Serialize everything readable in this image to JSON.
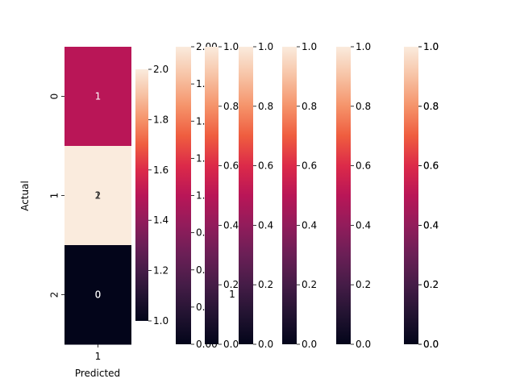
{
  "chart_data": {
    "type": "heatmap",
    "xlabel": "Predicted",
    "ylabel": "Actual",
    "x_tick_labels": [
      "1"
    ],
    "y_tick_labels": [
      "0",
      "1",
      "2"
    ],
    "cells": [
      {
        "row": 0,
        "col": 0,
        "value": 1
      },
      {
        "row": 1,
        "col": 0,
        "value": 2
      },
      {
        "row": 2,
        "col": 0,
        "value": 0
      }
    ],
    "overlapping_annotations": [
      {
        "row": 0,
        "text": "1"
      },
      {
        "row": 1,
        "text": "1"
      },
      {
        "row": 1,
        "text": "2"
      },
      {
        "row": 2,
        "text": "0"
      },
      {
        "row": 2,
        "text": "0"
      }
    ],
    "stray_annotation": "1",
    "colormap": "rocket",
    "colorbars": [
      {
        "vmin": 1.0,
        "vmax": 2.0,
        "ticks": [
          "1.0",
          "1.2",
          "1.4",
          "1.6",
          "1.8",
          "2.0"
        ]
      },
      {
        "vmin": 0.0,
        "vmax": 2.0,
        "ticks": [
          "0.00",
          "0.25",
          "0.50",
          "0.75",
          "1.00",
          "1.25",
          "1.50",
          "1.75",
          "2.00"
        ]
      },
      {
        "vmin": 0.0,
        "vmax": 1.0,
        "ticks": [
          "0.0",
          "0.2",
          "0.4",
          "0.6",
          "0.8",
          "1.0"
        ]
      },
      {
        "vmin": 0.0,
        "vmax": 1.0,
        "ticks": [
          "0.0",
          "0.2",
          "0.4",
          "0.6",
          "0.8",
          "1.0"
        ]
      },
      {
        "vmin": 0.0,
        "vmax": 1.0,
        "ticks": [
          "0.0",
          "0.2",
          "0.4",
          "0.6",
          "0.8",
          "1.0"
        ]
      },
      {
        "vmin": 0.0,
        "vmax": 1.0,
        "ticks": [
          "0.0",
          "0.2",
          "0.4",
          "0.6",
          "0.8",
          "1.0"
        ]
      },
      {
        "vmin": 0.0,
        "vmax": 1.0,
        "ticks": [
          "0.0",
          "0.2",
          "0.4",
          "0.6",
          "0.8",
          "1.0"
        ]
      },
      {
        "vmin": 0.0,
        "vmax": 1.0,
        "ticks": [
          "0.0",
          "0.2",
          "0.4",
          "0.6",
          "0.8",
          "1.0"
        ]
      }
    ]
  }
}
